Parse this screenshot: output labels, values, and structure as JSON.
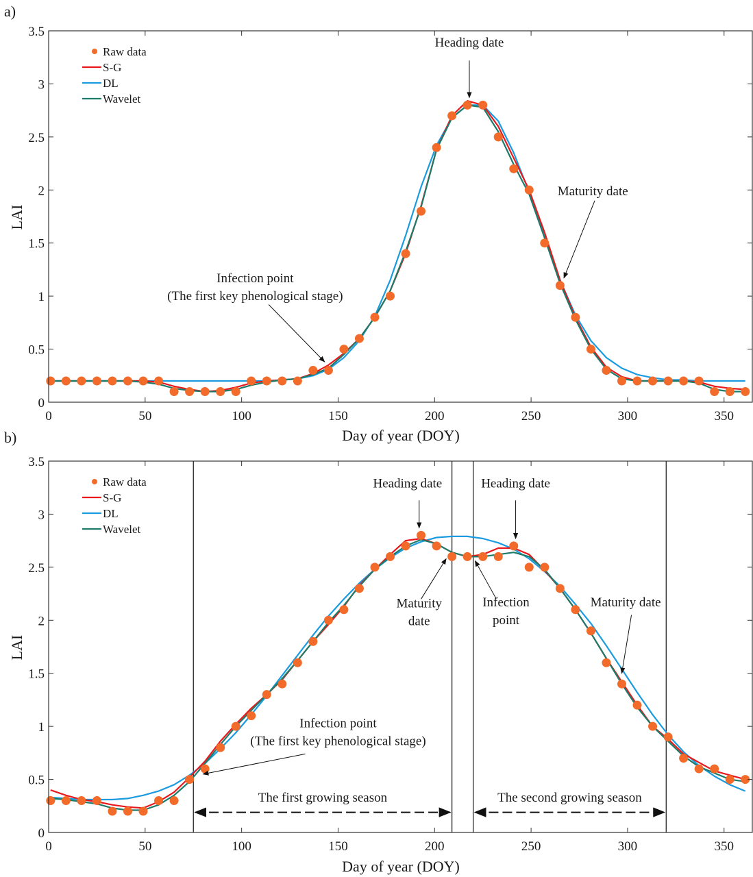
{
  "colors": {
    "raw": "#F26B2A",
    "sg": "#E8181C",
    "dl": "#1A9BE0",
    "wavelet": "#1E7B6A",
    "axis": "#333333"
  },
  "chart_data": [
    {
      "type": "line",
      "panel_label": "a)",
      "xlabel": "Day of year (DOY)",
      "ylabel": "LAI",
      "xlim": [
        0,
        365
      ],
      "ylim": [
        0,
        3.5
      ],
      "xticks": [
        0,
        50,
        100,
        150,
        200,
        250,
        300,
        350
      ],
      "yticks": [
        0,
        0.5,
        1,
        1.5,
        2,
        2.5,
        3,
        3.5
      ],
      "xtick_labels": [
        "0",
        "50",
        "100",
        "150",
        "200",
        "250",
        "300",
        "350"
      ],
      "ytick_labels": [
        "0",
        "0.5",
        "1",
        "1.5",
        "2",
        "2.5",
        "3",
        "3.5"
      ],
      "legend": {
        "placement": "top-left",
        "entries": [
          "Raw data",
          "S-G",
          "DL",
          "Wavelet"
        ]
      },
      "series": [
        {
          "name": "Raw data",
          "kind": "scatter",
          "x": [
            1,
            9,
            17,
            25,
            33,
            41,
            49,
            57,
            65,
            73,
            81,
            89,
            97,
            105,
            113,
            121,
            129,
            137,
            145,
            153,
            161,
            169,
            177,
            185,
            193,
            201,
            209,
            217,
            225,
            233,
            241,
            249,
            257,
            265,
            273,
            281,
            289,
            297,
            305,
            313,
            321,
            329,
            337,
            345,
            353,
            361
          ],
          "y": [
            0.2,
            0.2,
            0.2,
            0.2,
            0.2,
            0.2,
            0.2,
            0.2,
            0.1,
            0.1,
            0.1,
            0.1,
            0.1,
            0.2,
            0.2,
            0.2,
            0.2,
            0.3,
            0.3,
            0.5,
            0.6,
            0.8,
            1.0,
            1.4,
            1.8,
            2.4,
            2.7,
            2.8,
            2.8,
            2.5,
            2.2,
            2.0,
            1.5,
            1.1,
            0.8,
            0.5,
            0.3,
            0.2,
            0.2,
            0.2,
            0.2,
            0.2,
            0.2,
            0.1,
            0.1,
            0.1
          ]
        },
        {
          "name": "S-G",
          "kind": "line",
          "x": [
            1,
            9,
            17,
            25,
            33,
            41,
            49,
            57,
            65,
            73,
            81,
            89,
            97,
            105,
            113,
            121,
            129,
            137,
            145,
            153,
            161,
            169,
            177,
            185,
            193,
            201,
            209,
            217,
            225,
            233,
            241,
            249,
            257,
            265,
            273,
            281,
            289,
            297,
            305,
            313,
            321,
            329,
            337,
            345,
            353,
            361
          ],
          "y": [
            0.2,
            0.2,
            0.2,
            0.2,
            0.2,
            0.2,
            0.2,
            0.19,
            0.15,
            0.12,
            0.1,
            0.11,
            0.14,
            0.18,
            0.2,
            0.21,
            0.22,
            0.27,
            0.35,
            0.46,
            0.6,
            0.8,
            1.05,
            1.4,
            1.85,
            2.38,
            2.7,
            2.84,
            2.8,
            2.6,
            2.3,
            2.0,
            1.6,
            1.15,
            0.8,
            0.52,
            0.33,
            0.24,
            0.2,
            0.2,
            0.2,
            0.2,
            0.19,
            0.15,
            0.13,
            0.12
          ]
        },
        {
          "name": "DL",
          "kind": "line",
          "x": [
            1,
            9,
            17,
            25,
            33,
            41,
            49,
            57,
            65,
            73,
            81,
            89,
            97,
            105,
            113,
            121,
            129,
            137,
            145,
            153,
            161,
            169,
            177,
            185,
            193,
            201,
            209,
            217,
            225,
            233,
            241,
            249,
            257,
            265,
            273,
            281,
            289,
            297,
            305,
            313,
            321,
            329,
            337,
            345,
            353,
            361
          ],
          "y": [
            0.2,
            0.2,
            0.2,
            0.2,
            0.2,
            0.2,
            0.2,
            0.2,
            0.2,
            0.2,
            0.2,
            0.2,
            0.2,
            0.2,
            0.2,
            0.21,
            0.22,
            0.25,
            0.31,
            0.42,
            0.58,
            0.81,
            1.15,
            1.57,
            2.03,
            2.42,
            2.68,
            2.8,
            2.8,
            2.65,
            2.35,
            1.98,
            1.56,
            1.15,
            0.82,
            0.58,
            0.42,
            0.32,
            0.26,
            0.23,
            0.21,
            0.21,
            0.2,
            0.2,
            0.2,
            0.2
          ]
        },
        {
          "name": "Wavelet",
          "kind": "line",
          "x": [
            1,
            9,
            17,
            25,
            33,
            41,
            49,
            57,
            65,
            73,
            81,
            89,
            97,
            105,
            113,
            121,
            129,
            137,
            145,
            153,
            161,
            169,
            177,
            185,
            193,
            201,
            209,
            217,
            225,
            233,
            241,
            249,
            257,
            265,
            273,
            281,
            289,
            297,
            305,
            313,
            321,
            329,
            337,
            345,
            353,
            361
          ],
          "y": [
            0.2,
            0.2,
            0.2,
            0.2,
            0.2,
            0.2,
            0.19,
            0.17,
            0.13,
            0.11,
            0.1,
            0.1,
            0.12,
            0.16,
            0.19,
            0.21,
            0.22,
            0.26,
            0.32,
            0.45,
            0.6,
            0.8,
            1.05,
            1.42,
            1.84,
            2.38,
            2.68,
            2.8,
            2.78,
            2.55,
            2.24,
            1.96,
            1.55,
            1.12,
            0.78,
            0.5,
            0.31,
            0.22,
            0.2,
            0.2,
            0.2,
            0.2,
            0.18,
            0.12,
            0.1,
            0.1
          ]
        }
      ],
      "annotations": [
        {
          "lines": [
            "Heading date"
          ],
          "text_x": 218,
          "text_y": 3.35,
          "arrow_from": [
            218,
            3.22
          ],
          "arrow_to": [
            218,
            2.87
          ]
        },
        {
          "lines": [
            "Maturity date"
          ],
          "text_x": 282,
          "text_y": 1.95,
          "arrow_from": [
            283,
            1.9
          ],
          "arrow_to": [
            267,
            1.17
          ]
        },
        {
          "lines": [
            "Infection point",
            "(The first key phenological stage)"
          ],
          "text_x": 107,
          "text_y": 1.13,
          "arrow_from": [
            114,
            0.92
          ],
          "arrow_to": [
            143,
            0.38
          ]
        }
      ],
      "vlines": [],
      "season_arrows": []
    },
    {
      "type": "line",
      "panel_label": "b)",
      "xlabel": "Day of year (DOY)",
      "ylabel": "LAI",
      "xlim": [
        0,
        365
      ],
      "ylim": [
        0,
        3.5
      ],
      "xticks": [
        0,
        50,
        100,
        150,
        200,
        250,
        300,
        350
      ],
      "yticks": [
        0,
        0.5,
        1,
        1.5,
        2,
        2.5,
        3,
        3.5
      ],
      "xtick_labels": [
        "0",
        "50",
        "100",
        "150",
        "200",
        "250",
        "300",
        "350"
      ],
      "ytick_labels": [
        "0",
        "0.5",
        "1",
        "1.5",
        "2",
        "2.5",
        "3",
        "3.5"
      ],
      "legend": {
        "placement": "top-left",
        "entries": [
          "Raw data",
          "S-G",
          "DL",
          "Wavelet"
        ]
      },
      "series": [
        {
          "name": "Raw data",
          "kind": "scatter",
          "x": [
            1,
            9,
            17,
            25,
            33,
            41,
            49,
            57,
            65,
            73,
            81,
            89,
            97,
            105,
            113,
            121,
            129,
            137,
            145,
            153,
            161,
            169,
            177,
            185,
            193,
            201,
            209,
            217,
            225,
            233,
            241,
            249,
            257,
            265,
            273,
            281,
            289,
            297,
            305,
            313,
            321,
            329,
            337,
            345,
            353,
            361
          ],
          "y": [
            0.3,
            0.3,
            0.3,
            0.3,
            0.2,
            0.2,
            0.2,
            0.3,
            0.3,
            0.5,
            0.6,
            0.8,
            1.0,
            1.1,
            1.3,
            1.4,
            1.6,
            1.8,
            2.0,
            2.1,
            2.3,
            2.5,
            2.6,
            2.7,
            2.8,
            2.7,
            2.6,
            2.6,
            2.6,
            2.6,
            2.7,
            2.5,
            2.5,
            2.3,
            2.1,
            1.9,
            1.6,
            1.4,
            1.2,
            1.0,
            0.9,
            0.7,
            0.6,
            0.6,
            0.5,
            0.5
          ]
        },
        {
          "name": "S-G",
          "kind": "line",
          "x": [
            1,
            9,
            17,
            25,
            33,
            41,
            49,
            57,
            65,
            73,
            81,
            89,
            97,
            105,
            113,
            121,
            129,
            137,
            145,
            153,
            161,
            169,
            177,
            185,
            193,
            201,
            209,
            217,
            225,
            233,
            241,
            249,
            257,
            265,
            273,
            281,
            289,
            297,
            305,
            313,
            321,
            329,
            337,
            345,
            353,
            361
          ],
          "y": [
            0.4,
            0.35,
            0.31,
            0.29,
            0.26,
            0.24,
            0.23,
            0.29,
            0.38,
            0.52,
            0.67,
            0.86,
            1.02,
            1.17,
            1.3,
            1.44,
            1.62,
            1.8,
            1.96,
            2.13,
            2.33,
            2.48,
            2.62,
            2.75,
            2.77,
            2.72,
            2.64,
            2.6,
            2.62,
            2.68,
            2.68,
            2.62,
            2.47,
            2.3,
            2.1,
            1.88,
            1.64,
            1.42,
            1.2,
            1.0,
            0.88,
            0.74,
            0.66,
            0.58,
            0.54,
            0.5
          ]
        },
        {
          "name": "DL",
          "kind": "line",
          "x": [
            1,
            9,
            17,
            25,
            33,
            41,
            49,
            57,
            65,
            73,
            81,
            89,
            97,
            105,
            113,
            121,
            129,
            137,
            145,
            153,
            161,
            169,
            177,
            185,
            193,
            201,
            209,
            217,
            225,
            233,
            241,
            249,
            257,
            265,
            273,
            281,
            289,
            297,
            305,
            313,
            321,
            329,
            337,
            345,
            353,
            361
          ],
          "y": [
            0.33,
            0.32,
            0.31,
            0.31,
            0.31,
            0.32,
            0.35,
            0.39,
            0.45,
            0.54,
            0.65,
            0.79,
            0.94,
            1.11,
            1.29,
            1.48,
            1.67,
            1.86,
            2.04,
            2.2,
            2.35,
            2.48,
            2.59,
            2.68,
            2.74,
            2.78,
            2.79,
            2.79,
            2.77,
            2.73,
            2.67,
            2.58,
            2.46,
            2.32,
            2.15,
            1.97,
            1.76,
            1.54,
            1.32,
            1.11,
            0.92,
            0.76,
            0.63,
            0.53,
            0.45,
            0.39
          ]
        },
        {
          "name": "Wavelet",
          "kind": "line",
          "x": [
            1,
            9,
            17,
            25,
            33,
            41,
            49,
            57,
            65,
            73,
            81,
            89,
            97,
            105,
            113,
            121,
            129,
            137,
            145,
            153,
            161,
            169,
            177,
            185,
            193,
            201,
            209,
            217,
            225,
            233,
            241,
            249,
            257,
            265,
            273,
            281,
            289,
            297,
            305,
            313,
            321,
            329,
            337,
            345,
            353,
            361
          ],
          "y": [
            0.32,
            0.31,
            0.29,
            0.27,
            0.23,
            0.21,
            0.21,
            0.26,
            0.35,
            0.48,
            0.65,
            0.83,
            1.0,
            1.15,
            1.3,
            1.45,
            1.62,
            1.8,
            1.98,
            2.14,
            2.32,
            2.48,
            2.6,
            2.7,
            2.76,
            2.72,
            2.64,
            2.6,
            2.6,
            2.62,
            2.64,
            2.6,
            2.48,
            2.3,
            2.1,
            1.88,
            1.64,
            1.4,
            1.18,
            1.0,
            0.86,
            0.72,
            0.62,
            0.56,
            0.5,
            0.48
          ]
        }
      ],
      "annotations": [
        {
          "lines": [
            "Heading date"
          ],
          "text_x": 186,
          "text_y": 3.25,
          "arrow_from": [
            192,
            3.13
          ],
          "arrow_to": [
            192,
            2.87
          ]
        },
        {
          "lines": [
            "Heading date"
          ],
          "text_x": 242,
          "text_y": 3.25,
          "arrow_from": [
            242,
            3.13
          ],
          "arrow_to": [
            242,
            2.77
          ]
        },
        {
          "lines": [
            "Maturity",
            "date"
          ],
          "text_x": 192,
          "text_y": 2.12,
          "arrow_from": [
            193,
            2.2
          ],
          "arrow_to": [
            206,
            2.58
          ]
        },
        {
          "lines": [
            "Infection",
            "point"
          ],
          "text_x": 237,
          "text_y": 2.13,
          "arrow_from": [
            232,
            2.2
          ],
          "arrow_to": [
            221,
            2.56
          ]
        },
        {
          "lines": [
            "Maturity date"
          ],
          "text_x": 299,
          "text_y": 2.13,
          "arrow_from": [
            302,
            2.05
          ],
          "arrow_to": [
            297,
            1.5
          ]
        },
        {
          "lines": [
            "Infection point",
            "(The first key phenological stage)"
          ],
          "text_x": 150,
          "text_y": 0.99,
          "arrow_from": [
            133,
            0.74
          ],
          "arrow_to": [
            80,
            0.55
          ]
        }
      ],
      "vlines": [
        75,
        209,
        220,
        320
      ],
      "season_arrows": [
        {
          "label": "The first growing season",
          "x1": 76,
          "x2": 208,
          "y": 0.19,
          "label_y": 0.29
        },
        {
          "label": "The second growing season",
          "x1": 221,
          "x2": 319,
          "y": 0.19,
          "label_y": 0.29
        }
      ]
    }
  ]
}
